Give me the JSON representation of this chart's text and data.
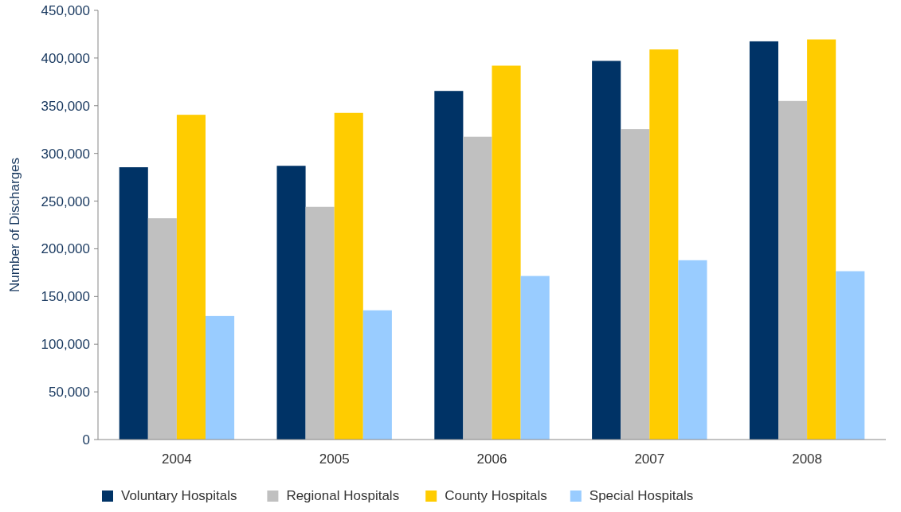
{
  "chart_data": {
    "type": "bar",
    "ylabel": "Number of Discharges",
    "categories": [
      "2004",
      "2005",
      "2006",
      "2007",
      "2008"
    ],
    "series": [
      {
        "name": "Voluntary Hospitals",
        "color": "#003366",
        "values": [
          285500,
          287000,
          365500,
          397000,
          417500
        ]
      },
      {
        "name": "Regional Hospitals",
        "color": "#c0c0c0",
        "values": [
          232000,
          244000,
          317500,
          325500,
          355000
        ]
      },
      {
        "name": "County Hospitals",
        "color": "#ffcc00",
        "values": [
          340500,
          342500,
          392000,
          409000,
          419500
        ]
      },
      {
        "name": "Special Hospitals",
        "color": "#99ccff",
        "values": [
          129500,
          135500,
          171500,
          188000,
          176500
        ]
      }
    ],
    "ylim": [
      0,
      450000
    ],
    "yticks": [
      {
        "value": 0,
        "label": "0"
      },
      {
        "value": 50000,
        "label": "50,000"
      },
      {
        "value": 100000,
        "label": "100,000"
      },
      {
        "value": 150000,
        "label": "150,000"
      },
      {
        "value": 200000,
        "label": "200,000"
      },
      {
        "value": 250000,
        "label": "250,000"
      },
      {
        "value": 300000,
        "label": "300,000"
      },
      {
        "value": 350000,
        "label": "350,000"
      },
      {
        "value": 400000,
        "label": "400,000"
      },
      {
        "value": 450000,
        "label": "450,000"
      }
    ],
    "grid": false,
    "legend": "bottom"
  }
}
